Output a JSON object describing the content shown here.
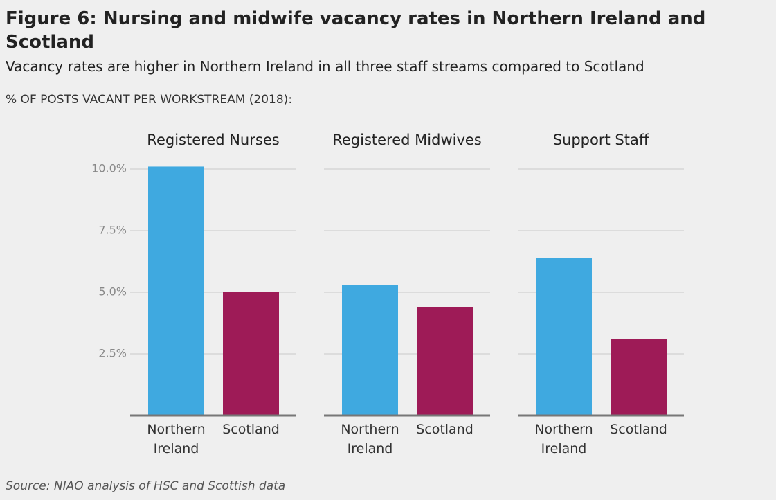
{
  "title": "Figure 6: Nursing and midwife vacancy rates in Northern Ireland and Scotland",
  "subtitle": "Vacancy rates are higher in Northern Ireland in all three staff streams compared to Scotland",
  "axis_label": "% OF POSTS VACANT PER WORKSTREAM (2018):",
  "source": "Source: NIAO analysis of HSC and Scottish data",
  "chart_data": [
    {
      "type": "bar",
      "title": "Registered Nurses",
      "categories": [
        "Northern Ireland",
        "Scotland"
      ],
      "values": [
        10.1,
        5.0
      ],
      "colors": [
        "#3fa9e0",
        "#9e1b57"
      ],
      "ylim": [
        0,
        10
      ],
      "yticks": [
        {
          "value": 2.5,
          "label": "2.5%"
        },
        {
          "value": 5,
          "label": "5.0%"
        },
        {
          "value": 7.5,
          "label": "7.5%"
        },
        {
          "value": 10,
          "label": "10.0%"
        }
      ],
      "grid": true
    },
    {
      "type": "bar",
      "title": "Registered Midwives",
      "categories": [
        "Northern Ireland",
        "Scotland"
      ],
      "values": [
        5.3,
        4.4
      ],
      "colors": [
        "#3fa9e0",
        "#9e1b57"
      ],
      "ylim": [
        0,
        10
      ],
      "yticks": [
        2.5,
        5,
        7.5,
        10
      ],
      "grid": true
    },
    {
      "type": "bar",
      "title": "Support Staff",
      "categories": [
        "Northern Ireland",
        "Scotland"
      ],
      "values": [
        6.4,
        3.1
      ],
      "colors": [
        "#3fa9e0",
        "#9e1b57"
      ],
      "ylim": [
        0,
        10
      ],
      "yticks": [
        2.5,
        5,
        7.5,
        10
      ],
      "grid": true
    }
  ]
}
